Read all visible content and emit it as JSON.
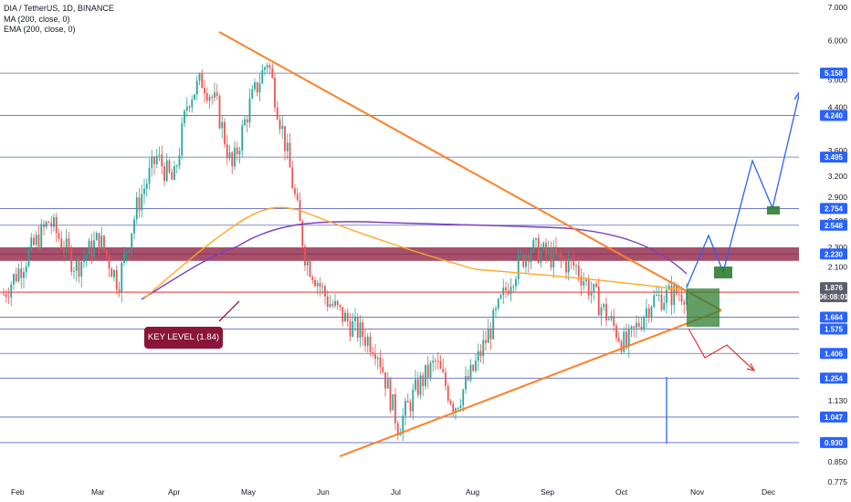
{
  "header": {
    "symbol_line": "DIA / TetherUS, 1D, BINANCE",
    "ma_line": "MA (200, close, 0)",
    "ema_line": "EMA (200, close, 0)"
  },
  "annotation": {
    "key_level": "KEY LEVEL (1.84)"
  },
  "colors": {
    "background": "#ffffff",
    "candle_up": "#26a69a",
    "candle_down": "#ef5350",
    "trendline": "#ff7f27",
    "ma": "#7b3fbf",
    "ema": "#ffa726",
    "level_line": "#3f51b5",
    "key_level_line": "#ef5350",
    "resistance_zone": "#8a1538",
    "projection_up": "#2962ff",
    "projection_down": "#e53935",
    "target_box": "#2e7d32"
  },
  "chart_data": {
    "type": "candlestick",
    "title": "DIA / TetherUS, 1D, BINANCE",
    "x_tick_labels": [
      "Feb",
      "Mar",
      "Apr",
      "May",
      "Jun",
      "Jul",
      "Aug",
      "Sep",
      "Oct",
      "Nov",
      "Dec"
    ],
    "y_scale": "log",
    "y_range": [
      0.775,
      7.0
    ],
    "y_tick_labels": [
      "7.000",
      "6.000",
      "5.000",
      "4.400",
      "3.600",
      "3.200",
      "2.900",
      "2.600",
      "2.300",
      "2.100",
      "1.130",
      "0.850",
      "0.775"
    ],
    "horizontal_levels": [
      5.158,
      4.24,
      3.495,
      2.754,
      2.548,
      2.23,
      1.664,
      1.575,
      1.406,
      1.254,
      1.047,
      0.93
    ],
    "key_level": 1.84,
    "current_price": 1.876,
    "countdown": "06:08:01",
    "marked_price": 1.847,
    "resistance_zone": [
      2.16,
      2.3
    ],
    "price_path": [
      [
        "Feb",
        1.85
      ],
      [
        "Feb",
        2.6
      ],
      [
        "Feb",
        2.1
      ],
      [
        "Mar",
        2.4
      ],
      [
        "Mar",
        1.95
      ],
      [
        "Mar",
        2.8
      ],
      [
        "Mar",
        3.5
      ],
      [
        "Apr",
        3.1
      ],
      [
        "Apr",
        4.6
      ],
      [
        "Apr",
        5.0
      ],
      [
        "Apr",
        4.4
      ],
      [
        "Apr",
        3.3
      ],
      [
        "May",
        4.4
      ],
      [
        "May",
        5.5
      ],
      [
        "May",
        3.6
      ],
      [
        "May",
        2.2
      ],
      [
        "Jun",
        1.8
      ],
      [
        "Jun",
        1.6
      ],
      [
        "Jun",
        1.45
      ],
      [
        "Jul",
        1.0
      ],
      [
        "Jul",
        1.2
      ],
      [
        "Jul",
        1.35
      ],
      [
        "Jul",
        1.1
      ],
      [
        "Aug",
        1.3
      ],
      [
        "Aug",
        1.6
      ],
      [
        "Aug",
        2.0
      ],
      [
        "Aug",
        2.3
      ],
      [
        "Sep",
        2.2
      ],
      [
        "Sep",
        2.1
      ],
      [
        "Sep",
        1.75
      ],
      [
        "Oct",
        1.45
      ],
      [
        "Oct",
        1.8
      ],
      [
        "Oct",
        1.86
      ],
      [
        "Nov",
        1.876
      ]
    ],
    "series": [
      {
        "name": "MA (200, close, 0)"
      },
      {
        "name": "EMA (200, close, 0)"
      }
    ]
  }
}
